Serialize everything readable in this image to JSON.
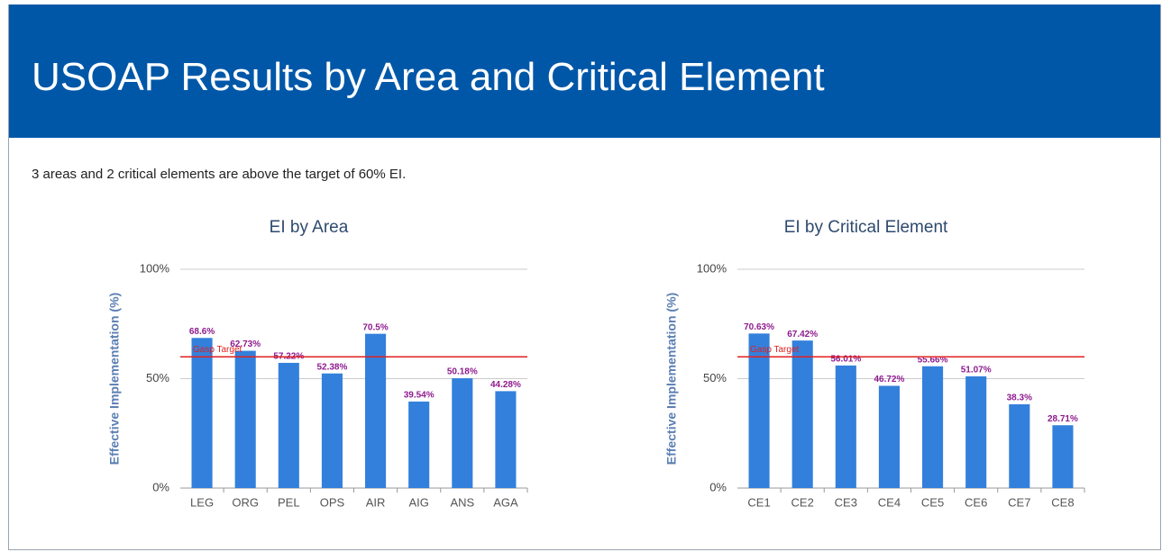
{
  "header": {
    "title": "USOAP Results by Area and Critical Element"
  },
  "summary": "3 areas and 2 critical elements are above the target of 60% EI.",
  "chart_data": [
    {
      "type": "bar",
      "title": "EI by Area",
      "y_label": "Effective Implementation (%)",
      "categories": [
        "LEG",
        "ORG",
        "PEL",
        "OPS",
        "AIR",
        "AIG",
        "ANS",
        "AGA"
      ],
      "values": [
        68.6,
        62.73,
        57.22,
        52.38,
        70.5,
        39.54,
        50.18,
        44.28
      ],
      "value_labels": [
        "68.6%",
        "62.73%",
        "57.22%",
        "52.38%",
        "70.5%",
        "39.54%",
        "50.18%",
        "44.28%"
      ],
      "color": "#3380dc",
      "label_color": "#8e1b8e",
      "ylim": [
        0,
        100
      ],
      "yticks": [
        {
          "value": 0,
          "label": "0%"
        },
        {
          "value": 50,
          "label": "50%"
        },
        {
          "value": 100,
          "label": "100%"
        }
      ],
      "grid": true,
      "target": {
        "value": 60,
        "label": "Gasp Target",
        "color": "#e02020"
      }
    },
    {
      "type": "bar",
      "title": "EI by Critical Element",
      "y_label": "Effective Implementation (%)",
      "categories": [
        "CE1",
        "CE2",
        "CE3",
        "CE4",
        "CE5",
        "CE6",
        "CE7",
        "CE8"
      ],
      "values": [
        70.63,
        67.42,
        56.01,
        46.72,
        55.66,
        51.07,
        38.3,
        28.71
      ],
      "value_labels": [
        "70.63%",
        "67.42%",
        "56.01%",
        "46.72%",
        "55.66%",
        "51.07%",
        "38.3%",
        "28.71%"
      ],
      "color": "#3380dc",
      "label_color": "#8e1b8e",
      "ylim": [
        0,
        100
      ],
      "yticks": [
        {
          "value": 0,
          "label": "0%"
        },
        {
          "value": 50,
          "label": "50%"
        },
        {
          "value": 100,
          "label": "100%"
        }
      ],
      "grid": true,
      "target": {
        "value": 60,
        "label": "Gasp Target",
        "color": "#e02020"
      }
    }
  ]
}
